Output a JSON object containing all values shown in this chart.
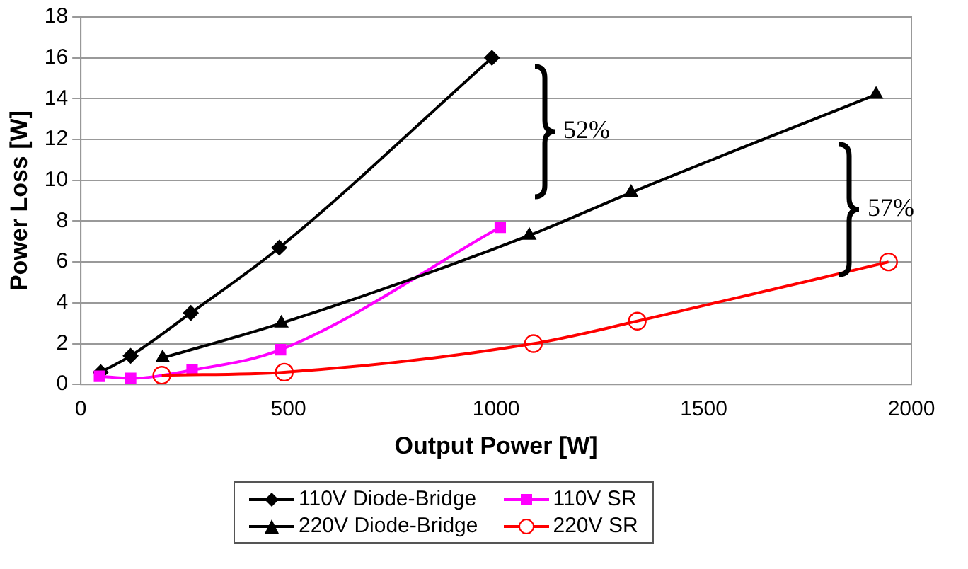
{
  "chart_data": {
    "type": "line",
    "xlabel": "Output Power [W]",
    "ylabel": "Power Loss [W]",
    "xlim": [
      0,
      2000
    ],
    "xticks": [
      0,
      500,
      1000,
      1500,
      2000
    ],
    "ylim": [
      0,
      18
    ],
    "yticks": [
      0,
      2,
      4,
      6,
      8,
      10,
      12,
      14,
      16,
      18
    ],
    "grid": "y",
    "legend": "bottom",
    "line_style": "solid",
    "series": [
      {
        "name": "110V Diode-Bridge",
        "color": "#000000",
        "marker": "diamond",
        "x": [
          48,
          120,
          265,
          478,
          990
        ],
        "values": [
          0.6,
          1.4,
          3.5,
          6.7,
          16
        ]
      },
      {
        "name": "110V SR",
        "color": "#ff00ff",
        "marker": "square",
        "x": [
          45,
          120,
          268,
          481,
          1010
        ],
        "values": [
          0.4,
          0.3,
          0.7,
          1.7,
          7.7
        ]
      },
      {
        "name": "220V Diode-Bridge",
        "color": "#000000",
        "marker": "triangle",
        "x": [
          197,
          483,
          1080,
          1325,
          1915
        ],
        "values": [
          1.3,
          3.0,
          7.3,
          9.4,
          14.2
        ]
      },
      {
        "name": "220V SR",
        "color": "#ff0000",
        "marker": "circle",
        "x": [
          195,
          490,
          1090,
          1340,
          1945
        ],
        "values": [
          0.45,
          0.6,
          2.0,
          3.1,
          6.0
        ]
      }
    ],
    "annotations": [
      "52%",
      "57%"
    ]
  }
}
